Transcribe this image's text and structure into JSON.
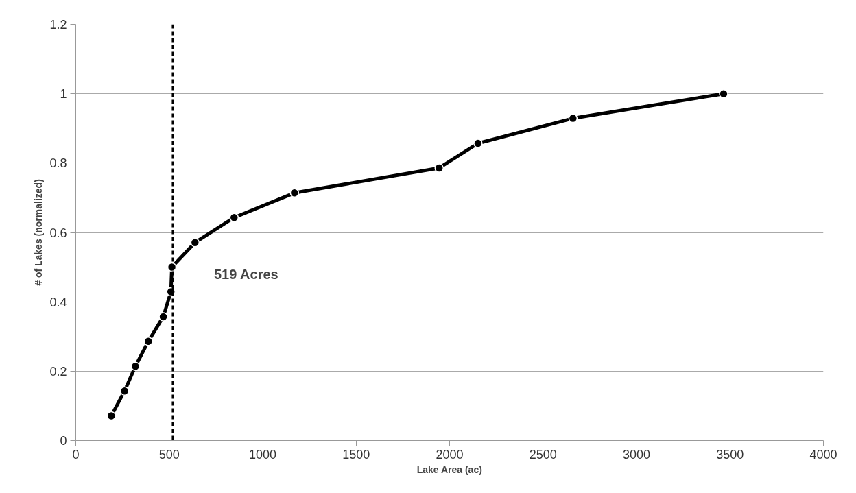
{
  "chart_data": {
    "type": "line",
    "xlabel": "Lake Area (ac)",
    "ylabel": "# of Lakes (normalized)",
    "x": [
      190,
      261,
      319,
      388,
      468,
      509,
      514,
      638,
      847,
      1170,
      1944,
      2152,
      2660,
      3466
    ],
    "series": [
      {
        "color": "#000000",
        "values": [
          0.071,
          0.143,
          0.214,
          0.286,
          0.357,
          0.429,
          0.5,
          0.571,
          0.643,
          0.714,
          0.786,
          0.857,
          0.929,
          1.0
        ]
      }
    ],
    "xlim": [
      0,
      4000
    ],
    "xticks": [
      0,
      500,
      1000,
      1500,
      2000,
      2500,
      3000,
      3500,
      4000
    ],
    "ylim": [
      0,
      1.2
    ],
    "yticks": [
      0,
      0.2,
      0.4,
      0.6,
      0.8,
      1,
      1.2
    ],
    "grid": "y",
    "marker": "circle",
    "line_style": "solid",
    "ref_lines": [
      {
        "axis": "x",
        "value": 519,
        "label": "519 Acres",
        "color": "#000000",
        "line_style": "dashed"
      }
    ]
  }
}
